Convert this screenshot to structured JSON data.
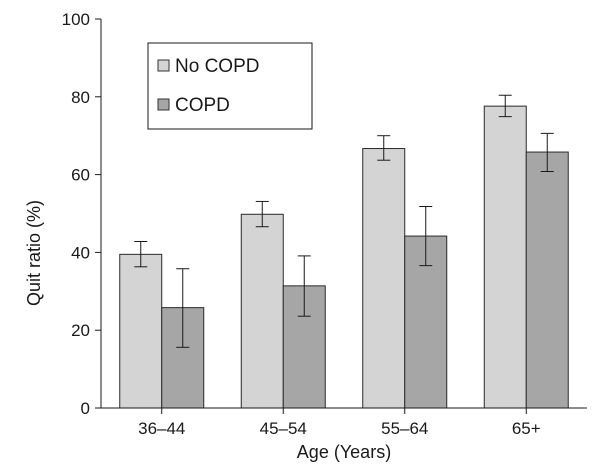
{
  "chart_data": {
    "type": "bar",
    "categories": [
      "36–44",
      "45–54",
      "55–64",
      "65+"
    ],
    "series": [
      {
        "name": "No COPD",
        "color": "#d4d4d4",
        "values": [
          39.5,
          49.8,
          66.7,
          77.6
        ],
        "error_low": [
          36.3,
          46.6,
          63.7,
          74.9
        ],
        "error_high": [
          42.8,
          53.1,
          70.0,
          80.4
        ]
      },
      {
        "name": "COPD",
        "color": "#a6a6a6",
        "values": [
          25.8,
          31.4,
          44.2,
          65.8
        ],
        "error_low": [
          15.6,
          23.6,
          36.6,
          60.8
        ],
        "error_high": [
          35.8,
          39.1,
          51.8,
          70.6
        ]
      }
    ],
    "xlabel": "Age (Years)",
    "ylabel": "Quit ratio (%)",
    "ylim": [
      0,
      100
    ],
    "yticks": [
      0,
      20,
      40,
      60,
      80,
      100
    ],
    "grid": false,
    "legend": "top-left"
  }
}
